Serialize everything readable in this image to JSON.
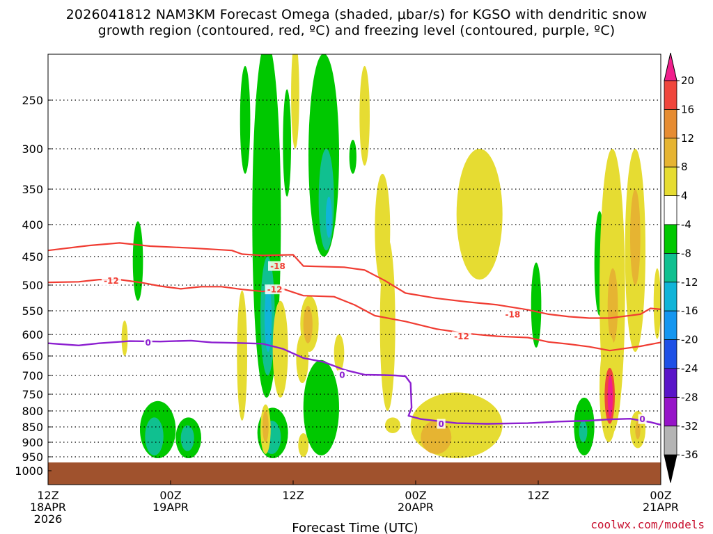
{
  "title_line1": "2026041812 NAM3KM Forecast Omega (shaded, μbar/s) for KGSO with dendritic snow",
  "title_line2": "growth region (contoured, red, ºC) and freezing level (contoured, purple, ºC)",
  "credit": "coolwx.com/models",
  "chart_data": {
    "type": "cross-section",
    "xlabel": "Forecast Time (UTC)",
    "ylabel": "",
    "x_ticks": [
      {
        "t": 0,
        "lines": [
          "12Z",
          "18APR",
          "2026"
        ]
      },
      {
        "t": 12,
        "lines": [
          "00Z",
          "19APR"
        ]
      },
      {
        "t": 24,
        "lines": [
          "12Z"
        ]
      },
      {
        "t": 36,
        "lines": [
          "00Z",
          "20APR"
        ]
      },
      {
        "t": 48,
        "lines": [
          "12Z"
        ]
      },
      {
        "t": 60,
        "lines": [
          "00Z",
          "21APR"
        ]
      }
    ],
    "xlim": [
      0,
      60
    ],
    "y_ticks": [
      250,
      300,
      350,
      400,
      450,
      500,
      550,
      600,
      650,
      700,
      750,
      800,
      850,
      900,
      950,
      1000
    ],
    "ylim_hPa": [
      1000,
      200
    ],
    "ground_hPa": 970,
    "colors": {
      "ground": "#a0522d",
      "dgz": "#f03c32",
      "freezing": "#8c1fd0",
      "omega_neg4_to_neg8": "#00c800",
      "omega_neg8_to_neg12": "#10c090",
      "omega_neg12_to_neg16": "#10b4d8",
      "omega_pos4_to_8": "#e6dc32",
      "omega_pos8_to_12": "#e6b432",
      "omega_pos12_to_16": "#e68c32",
      "omega_pos16_to_20": "#f0463c",
      "omega_pos20_plus": "#f01e8c"
    },
    "colorbar": {
      "labels": [
        "20",
        "16",
        "12",
        "8",
        "4",
        "-4",
        "-8",
        "-12",
        "-16",
        "-20",
        "-24",
        "-28",
        "-32",
        "-36"
      ],
      "colors": [
        "#f01e8c",
        "#f0463c",
        "#e68c32",
        "#e6b432",
        "#e6dc32",
        "#ffffff",
        "#00c800",
        "#10c090",
        "#10b4d8",
        "#1496f0",
        "#1e50e6",
        "#5a14c8",
        "#9614c8",
        "#b4b4b4",
        "#000000"
      ]
    },
    "contour_labels": [
      {
        "text": "-12",
        "color": "red"
      },
      {
        "text": "-18",
        "color": "red"
      },
      {
        "text": "-12",
        "color": "red"
      },
      {
        "text": "-18",
        "color": "red"
      },
      {
        "text": "-12",
        "color": "red"
      },
      {
        "text": "0",
        "color": "purple"
      },
      {
        "text": "0",
        "color": "purple"
      },
      {
        "text": "0",
        "color": "purple"
      },
      {
        "text": "0",
        "color": "purple"
      }
    ],
    "dgz_minus18": [
      [
        0,
        440
      ],
      [
        4,
        432
      ],
      [
        7,
        428
      ],
      [
        10,
        433
      ],
      [
        14,
        436
      ],
      [
        18,
        440
      ],
      [
        19,
        446
      ],
      [
        21,
        448
      ],
      [
        24,
        447
      ],
      [
        25,
        466
      ],
      [
        29,
        468
      ],
      [
        31,
        473
      ],
      [
        33,
        492
      ],
      [
        35,
        515
      ],
      [
        38,
        525
      ],
      [
        41,
        532
      ],
      [
        44,
        538
      ],
      [
        47,
        548
      ],
      [
        49,
        557
      ],
      [
        51,
        562
      ],
      [
        53,
        565
      ],
      [
        55,
        565
      ],
      [
        58,
        557
      ],
      [
        59,
        545
      ],
      [
        60,
        547
      ]
    ],
    "dgz_minus12": [
      [
        0,
        495
      ],
      [
        3,
        494
      ],
      [
        5,
        490
      ],
      [
        7,
        490
      ],
      [
        9,
        495
      ],
      [
        11,
        502
      ],
      [
        13,
        507
      ],
      [
        15,
        503
      ],
      [
        17,
        503
      ],
      [
        19,
        508
      ],
      [
        21,
        512
      ],
      [
        23,
        507
      ],
      [
        25,
        520
      ],
      [
        28,
        522
      ],
      [
        30,
        538
      ],
      [
        32,
        560
      ],
      [
        35,
        572
      ],
      [
        38,
        588
      ],
      [
        41,
        598
      ],
      [
        44,
        604
      ],
      [
        47,
        607
      ],
      [
        49,
        617
      ],
      [
        51,
        622
      ],
      [
        53,
        628
      ],
      [
        55,
        637
      ],
      [
        58,
        627
      ],
      [
        60,
        618
      ]
    ],
    "freezing_0C": [
      [
        0,
        620
      ],
      [
        3,
        625
      ],
      [
        5,
        620
      ],
      [
        8,
        615
      ],
      [
        11,
        616
      ],
      [
        14,
        614
      ],
      [
        16,
        618
      ],
      [
        18,
        619
      ],
      [
        21,
        621
      ],
      [
        23,
        633
      ],
      [
        25,
        655
      ],
      [
        27,
        665
      ],
      [
        29,
        685
      ],
      [
        31,
        698
      ],
      [
        33,
        699
      ],
      [
        34,
        700
      ],
      [
        35,
        702
      ],
      [
        35.5,
        720
      ],
      [
        35.6,
        790
      ],
      [
        35.3,
        815
      ],
      [
        36.5,
        825
      ],
      [
        40,
        838
      ],
      [
        43,
        840
      ],
      [
        47,
        838
      ],
      [
        50,
        833
      ],
      [
        53,
        830
      ],
      [
        55,
        826
      ],
      [
        57,
        824
      ],
      [
        59,
        835
      ],
      [
        60,
        843
      ]
    ],
    "omega_regions": [
      {
        "c": "omega_neg4_to_neg8",
        "t0": 8.3,
        "t1": 9.3,
        "p0": 395,
        "p1": 530
      },
      {
        "c": "omega_neg4_to_neg8",
        "t0": 9.0,
        "t1": 12.5,
        "p0": 770,
        "p1": 955
      },
      {
        "c": "omega_neg8_to_neg12",
        "t0": 9.5,
        "t1": 11.3,
        "p0": 820,
        "p1": 945
      },
      {
        "c": "omega_neg4_to_neg8",
        "t0": 12.5,
        "t1": 15.0,
        "p0": 820,
        "p1": 955
      },
      {
        "c": "omega_neg8_to_neg12",
        "t0": 13.0,
        "t1": 14.3,
        "p0": 845,
        "p1": 930
      },
      {
        "c": "omega_neg4_to_neg8",
        "t0": 18.8,
        "t1": 19.8,
        "p0": 220,
        "p1": 330
      },
      {
        "c": "omega_neg4_to_neg8",
        "t0": 20.0,
        "t1": 22.8,
        "p0": 200,
        "p1": 760
      },
      {
        "c": "omega_neg8_to_neg12",
        "t0": 20.8,
        "t1": 22.2,
        "p0": 450,
        "p1": 700
      },
      {
        "c": "omega_neg12_to_neg16",
        "t0": 21.2,
        "t1": 21.9,
        "p0": 500,
        "p1": 640
      },
      {
        "c": "omega_neg4_to_neg8",
        "t0": 20.5,
        "t1": 23.5,
        "p0": 790,
        "p1": 955
      },
      {
        "c": "omega_neg8_to_neg12",
        "t0": 21.0,
        "t1": 22.8,
        "p0": 830,
        "p1": 940
      },
      {
        "c": "omega_neg4_to_neg8",
        "t0": 23.0,
        "t1": 23.8,
        "p0": 240,
        "p1": 360
      },
      {
        "c": "omega_neg4_to_neg8",
        "t0": 25.5,
        "t1": 28.5,
        "p0": 210,
        "p1": 450
      },
      {
        "c": "omega_neg8_to_neg12",
        "t0": 26.5,
        "t1": 28.0,
        "p0": 300,
        "p1": 440
      },
      {
        "c": "omega_neg12_to_neg16",
        "t0": 27.2,
        "t1": 27.8,
        "p0": 360,
        "p1": 420
      },
      {
        "c": "omega_neg4_to_neg8",
        "t0": 25.0,
        "t1": 28.5,
        "p0": 660,
        "p1": 945
      },
      {
        "c": "omega_neg4_to_neg8",
        "t0": 29.5,
        "t1": 30.2,
        "p0": 290,
        "p1": 330
      },
      {
        "c": "omega_neg4_to_neg8",
        "t0": 47.3,
        "t1": 48.3,
        "p0": 460,
        "p1": 630
      },
      {
        "c": "omega_neg4_to_neg8",
        "t0": 51.5,
        "t1": 53.5,
        "p0": 760,
        "p1": 945
      },
      {
        "c": "omega_neg8_to_neg12",
        "t0": 52.0,
        "t1": 52.8,
        "p0": 830,
        "p1": 900
      },
      {
        "c": "omega_neg4_to_neg8",
        "t0": 53.5,
        "t1": 54.5,
        "p0": 380,
        "p1": 560
      },
      {
        "c": "omega_pos4_to_8",
        "t0": 7.2,
        "t1": 7.8,
        "p0": 570,
        "p1": 650
      },
      {
        "c": "omega_pos4_to_8",
        "t0": 18.5,
        "t1": 19.5,
        "p0": 510,
        "p1": 830
      },
      {
        "c": "omega_pos4_to_8",
        "t0": 22.0,
        "t1": 23.5,
        "p0": 530,
        "p1": 760
      },
      {
        "c": "omega_pos4_to_8",
        "t0": 23.8,
        "t1": 24.6,
        "p0": 200,
        "p1": 300
      },
      {
        "c": "omega_pos4_to_8",
        "t0": 24.3,
        "t1": 25.5,
        "p0": 600,
        "p1": 720
      },
      {
        "c": "omega_pos4_to_8",
        "t0": 24.7,
        "t1": 26.5,
        "p0": 520,
        "p1": 640
      },
      {
        "c": "omega_pos8_to_12",
        "t0": 25.0,
        "t1": 25.9,
        "p0": 540,
        "p1": 620
      },
      {
        "c": "omega_pos4_to_8",
        "t0": 24.5,
        "t1": 25.5,
        "p0": 870,
        "p1": 950
      },
      {
        "c": "omega_pos4_to_8",
        "t0": 28.0,
        "t1": 29.0,
        "p0": 600,
        "p1": 690
      },
      {
        "c": "omega_pos4_to_8",
        "t0": 30.5,
        "t1": 31.5,
        "p0": 220,
        "p1": 320
      },
      {
        "c": "omega_pos4_to_8",
        "t0": 32.0,
        "t1": 33.5,
        "p0": 330,
        "p1": 500
      },
      {
        "c": "omega_pos4_to_8",
        "t0": 32.5,
        "t1": 34.0,
        "p0": 420,
        "p1": 800
      },
      {
        "c": "omega_pos4_to_8",
        "t0": 33.0,
        "t1": 34.5,
        "p0": 820,
        "p1": 870
      },
      {
        "c": "omega_pos4_to_8",
        "t0": 35.5,
        "t1": 44.5,
        "p0": 745,
        "p1": 955
      },
      {
        "c": "omega_pos8_to_12",
        "t0": 36.5,
        "t1": 39.5,
        "p0": 830,
        "p1": 940
      },
      {
        "c": "omega_pos4_to_8",
        "t0": 40.0,
        "t1": 44.5,
        "p0": 300,
        "p1": 490
      },
      {
        "c": "omega_pos4_to_8",
        "t0": 54.0,
        "t1": 56.5,
        "p0": 300,
        "p1": 870
      },
      {
        "c": "omega_pos8_to_12",
        "t0": 54.8,
        "t1": 55.8,
        "p0": 470,
        "p1": 620
      },
      {
        "c": "omega_pos4_to_8",
        "t0": 56.5,
        "t1": 58.5,
        "p0": 300,
        "p1": 640
      },
      {
        "c": "omega_pos8_to_12",
        "t0": 57.0,
        "t1": 58.0,
        "p0": 350,
        "p1": 500
      },
      {
        "c": "omega_pos4_to_8",
        "t0": 54.0,
        "t1": 55.8,
        "p0": 600,
        "p1": 900
      },
      {
        "c": "omega_pos16_to_20",
        "t0": 54.5,
        "t1": 55.5,
        "p0": 680,
        "p1": 840
      },
      {
        "c": "omega_pos20_plus",
        "t0": 54.8,
        "t1": 55.3,
        "p0": 700,
        "p1": 820
      },
      {
        "c": "omega_pos4_to_8",
        "t0": 57.0,
        "t1": 58.5,
        "p0": 800,
        "p1": 920
      },
      {
        "c": "omega_pos8_to_12",
        "t0": 57.5,
        "t1": 58.0,
        "p0": 830,
        "p1": 890
      },
      {
        "c": "omega_pos4_to_8",
        "t0": 59.3,
        "t1": 60.0,
        "p0": 470,
        "p1": 610
      },
      {
        "c": "omega_pos4_to_8",
        "t0": 20.8,
        "t1": 21.8,
        "p0": 780,
        "p1": 940
      },
      {
        "c": "omega_pos8_to_12",
        "t0": 21.0,
        "t1": 21.6,
        "p0": 800,
        "p1": 900
      }
    ]
  }
}
